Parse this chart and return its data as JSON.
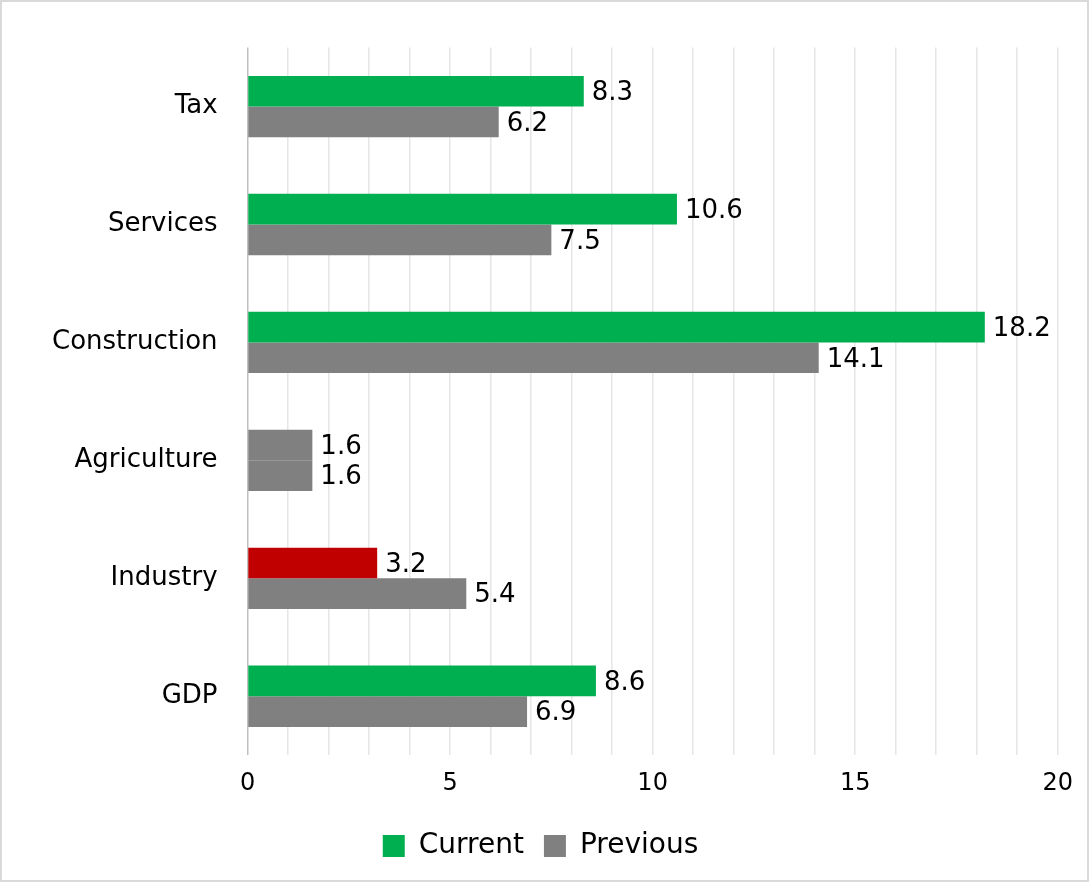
{
  "chart_data": {
    "type": "bar",
    "orientation": "horizontal",
    "categories": [
      "Tax",
      "Services",
      "Construction",
      "Agriculture",
      "Industry",
      "GDP"
    ],
    "series": [
      {
        "name": "Current",
        "color": "#00b050",
        "colors": [
          "#00b050",
          "#00b050",
          "#00b050",
          "#808080",
          "#c00000",
          "#00b050"
        ],
        "values": [
          8.3,
          10.6,
          18.2,
          1.6,
          3.2,
          8.6
        ]
      },
      {
        "name": "Previous",
        "color": "#808080",
        "values": [
          6.2,
          7.5,
          14.1,
          1.6,
          5.4,
          6.9
        ]
      }
    ],
    "xlim": [
      0,
      20
    ],
    "xticks": [
      0,
      {
        "value": 1,
        "label": null
      },
      {
        "value": 2,
        "label": null
      },
      {
        "value": 3,
        "label": null
      },
      {
        "value": 4,
        "label": null
      },
      5,
      {
        "value": 6,
        "label": null
      },
      {
        "value": 7,
        "label": null
      },
      {
        "value": 8,
        "label": null
      },
      {
        "value": 9,
        "label": null
      },
      10,
      {
        "value": 11,
        "label": null
      },
      {
        "value": 12,
        "label": null
      },
      {
        "value": 13,
        "label": null
      },
      {
        "value": 14,
        "label": null
      },
      15,
      {
        "value": 16,
        "label": null
      },
      {
        "value": 17,
        "label": null
      },
      {
        "value": 18,
        "label": null
      },
      {
        "value": 19,
        "label": null
      },
      20
    ],
    "grid": "x",
    "legend": "bottom",
    "data_labels": true
  }
}
